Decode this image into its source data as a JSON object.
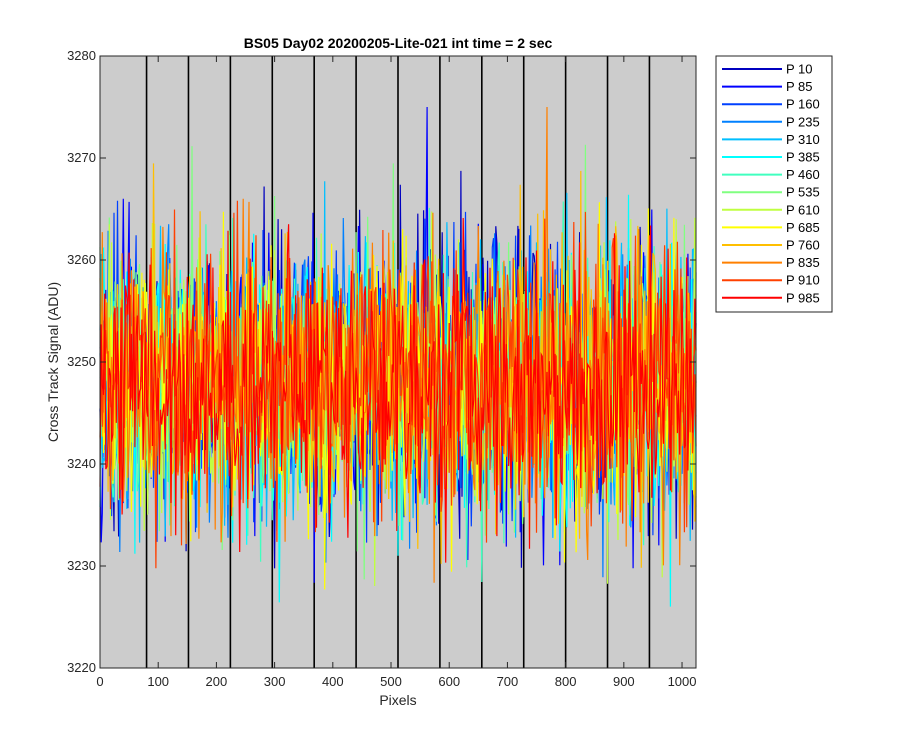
{
  "chart_data": {
    "type": "line",
    "title": "BS05 Day02 20200205-Lite-021 int time = 2 sec",
    "xlabel": "Pixels",
    "ylabel": "Cross Track Signal (ADU)",
    "xlim": [
      0,
      1024
    ],
    "ylim": [
      3220,
      3280
    ],
    "xticks": [
      0,
      100,
      200,
      300,
      400,
      500,
      600,
      700,
      800,
      900,
      1000
    ],
    "yticks": [
      3220,
      3230,
      3240,
      3250,
      3260,
      3270,
      3280
    ],
    "xtick_labels": [
      "0",
      "100",
      "200",
      "300",
      "400",
      "500",
      "600",
      "700",
      "800",
      "900",
      "1000"
    ],
    "ytick_labels": [
      "3220",
      "3230",
      "3240",
      "3250",
      "3260",
      "3270",
      "3280"
    ],
    "background": "#cccccc",
    "tap_boundaries": [
      0,
      80,
      152,
      224,
      296,
      368,
      440,
      512,
      584,
      656,
      728,
      800,
      872,
      944,
      1024
    ],
    "legend_position": "outside-right",
    "noise_mean": 3248,
    "noise_sigma": 6.5,
    "series": [
      {
        "name": "P 10",
        "color": "#0000bf"
      },
      {
        "name": "P 85",
        "color": "#0000ff"
      },
      {
        "name": "P 160",
        "color": "#0040ff"
      },
      {
        "name": "P 235",
        "color": "#0080ff"
      },
      {
        "name": "P 310",
        "color": "#00bfff"
      },
      {
        "name": "P 385",
        "color": "#00ffff"
      },
      {
        "name": "P 460",
        "color": "#40ffbf"
      },
      {
        "name": "P 535",
        "color": "#80ff80"
      },
      {
        "name": "P 610",
        "color": "#bfff40"
      },
      {
        "name": "P 685",
        "color": "#ffff00"
      },
      {
        "name": "P 760",
        "color": "#ffbf00"
      },
      {
        "name": "P 835",
        "color": "#ff8000"
      },
      {
        "name": "P 910",
        "color": "#ff4000"
      },
      {
        "name": "P 985",
        "color": "#ff0000"
      }
    ]
  }
}
